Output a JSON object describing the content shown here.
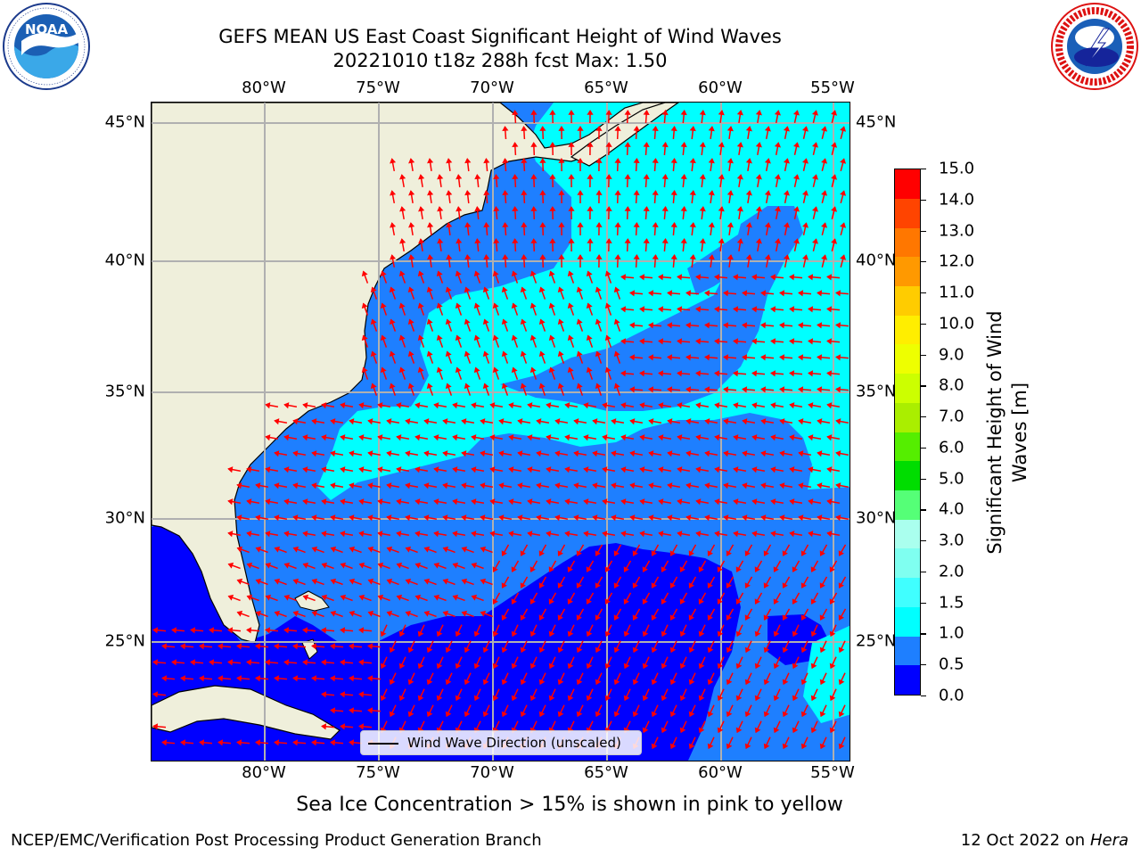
{
  "title_line1": "GEFS MEAN US East Coast Significant Height of Wind Waves",
  "title_line2": "20221010 t18z 288h fcst   Max: 1.50",
  "lon_labels": [
    "80°W",
    "75°W",
    "70°W",
    "65°W",
    "60°W",
    "55°W"
  ],
  "lat_labels": [
    "45°N",
    "40°N",
    "35°N",
    "30°N",
    "25°N"
  ],
  "legend_label": "Wind Wave Direction (unscaled)",
  "colorbar": {
    "label_line1": "Significant Height of Wind",
    "label_line2": "Waves [m]",
    "ticks": [
      "0.0",
      "0.5",
      "1.0",
      "1.5",
      "2.0",
      "3.0",
      "4.0",
      "5.0",
      "6.0",
      "7.0",
      "8.0",
      "9.0",
      "10.0",
      "11.0",
      "12.0",
      "13.0",
      "14.0",
      "15.0"
    ],
    "colors": [
      "#0000ff",
      "#1e7fff",
      "#00ffff",
      "#40ffff",
      "#7ffff0",
      "#aaffee",
      "#55ff77",
      "#00dd00",
      "#55ee00",
      "#aaee00",
      "#ccff00",
      "#eeff00",
      "#ffee00",
      "#ffcc00",
      "#ff9900",
      "#ff7700",
      "#ff4400",
      "#ff0000"
    ]
  },
  "note": "Sea Ice Concentration > 15% is shown in pink to yellow",
  "footer_left": "NCEP/EMC/Verification Post Processing Product Generation Branch",
  "footer_date": "12 Oct 2022 on ",
  "footer_host": "Hera",
  "logos": {
    "noaa": {
      "text": "NOAA",
      "ring_text": "NATIONAL OCEANIC AND ATMOSPHERIC ADMINISTRATION · U.S. DEPARTMENT OF COMMERCE"
    },
    "nws": {
      "ring_text": "NATIONAL WEATHER SERVICE"
    }
  }
}
